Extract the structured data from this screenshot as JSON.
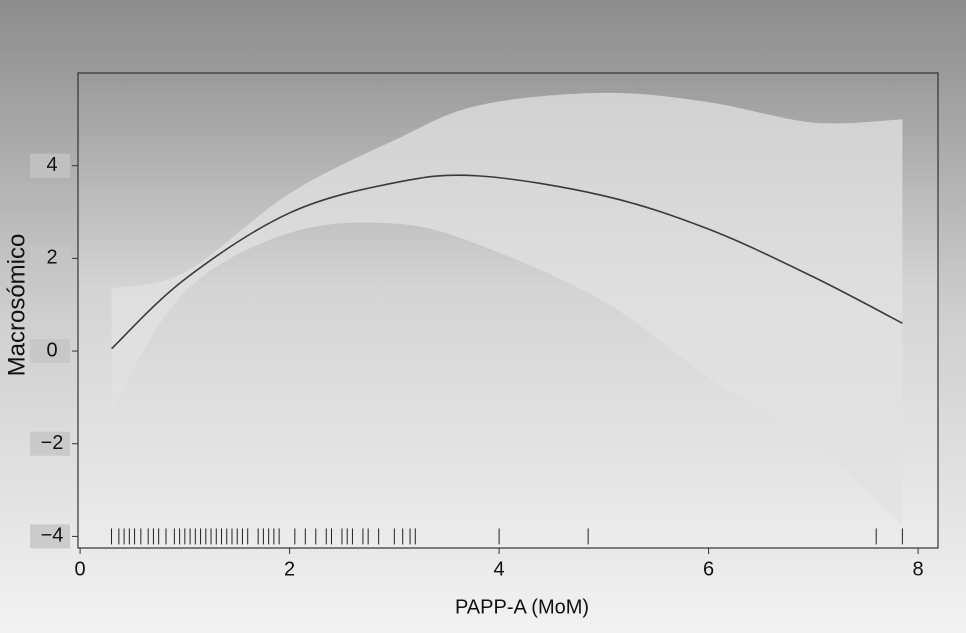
{
  "chart_data": {
    "type": "line",
    "x_label": "PAPP-A (MoM)",
    "y_label": "Macrosómico",
    "x": [
      0.3,
      1,
      2,
      3,
      3.8,
      5,
      6,
      7,
      7.85
    ],
    "values": [
      0.05,
      1.55,
      2.98,
      3.63,
      3.78,
      3.35,
      2.63,
      1.6,
      0.6
    ],
    "band_upper": [
      1.35,
      1.7,
      3.4,
      4.55,
      5.3,
      5.57,
      5.37,
      4.93,
      5.0
    ],
    "band_lower": [
      -1.25,
      1.28,
      2.55,
      2.75,
      2.3,
      1.07,
      -0.57,
      -2.0,
      -3.76
    ],
    "line_color": "#3a3a3a",
    "band_color": "#e2e2e2",
    "rug": [
      0.3,
      0.37,
      0.42,
      0.47,
      0.52,
      0.58,
      0.65,
      0.7,
      0.75,
      0.82,
      0.9,
      0.95,
      1.0,
      1.05,
      1.1,
      1.15,
      1.2,
      1.25,
      1.3,
      1.35,
      1.4,
      1.45,
      1.5,
      1.55,
      1.6,
      1.7,
      1.75,
      1.8,
      1.85,
      1.9,
      2.05,
      2.15,
      2.25,
      2.35,
      2.4,
      2.5,
      2.55,
      2.6,
      2.7,
      2.75,
      2.85,
      3.0,
      3.08,
      3.15,
      3.2,
      4.0,
      4.85,
      7.6,
      7.85
    ],
    "rug_y": -4,
    "xlim": [
      -0.02,
      8.19
    ],
    "xticks": [
      0,
      2,
      4,
      6,
      8
    ],
    "ylim": [
      -4.25,
      6
    ],
    "yticks": [
      {
        "value": -4,
        "label": "−4"
      },
      {
        "value": -2,
        "label": "−2"
      },
      0,
      2,
      4
    ]
  }
}
